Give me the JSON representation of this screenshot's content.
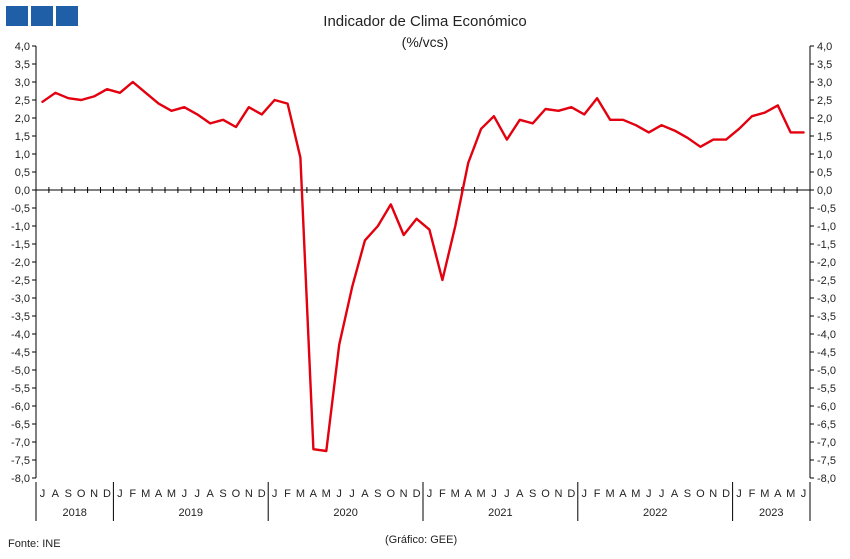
{
  "header": {
    "title": "Indicador de Clima Económico",
    "subtitle": "(%/vcs)"
  },
  "footer": {
    "source": "Fonte: INE",
    "credit": "(Gráfico: GEE)"
  },
  "colors": {
    "series": "#e3000f",
    "logo": "#1f5fa8",
    "axis": "#000000"
  },
  "chart_data": {
    "type": "line",
    "title": "Indicador de Clima Económico",
    "subtitle": "(%/vcs)",
    "ylim": [
      -8.0,
      4.0
    ],
    "ystep": 0.5,
    "y_ticks": [
      "4,0",
      "3,5",
      "3,0",
      "2,5",
      "2,0",
      "1,5",
      "1,0",
      "0,5",
      "0,0",
      "-0,5",
      "-1,0",
      "-1,5",
      "-2,0",
      "-2,5",
      "-3,0",
      "-3,5",
      "-4,0",
      "-4,5",
      "-5,0",
      "-5,5",
      "-6,0",
      "-6,5",
      "-7,0",
      "-7,5",
      "-8,0"
    ],
    "x_months": [
      "J",
      "A",
      "S",
      "O",
      "N",
      "D",
      "J",
      "F",
      "M",
      "A",
      "M",
      "J",
      "J",
      "A",
      "S",
      "O",
      "N",
      "D",
      "J",
      "F",
      "M",
      "A",
      "M",
      "J",
      "J",
      "A",
      "S",
      "O",
      "N",
      "D",
      "J",
      "F",
      "M",
      "A",
      "M",
      "J",
      "J",
      "A",
      "S",
      "O",
      "N",
      "D",
      "J",
      "F",
      "M",
      "A",
      "M",
      "J",
      "J",
      "A",
      "S",
      "O",
      "N",
      "D",
      "J",
      "F",
      "M",
      "A",
      "M",
      "J"
    ],
    "years": [
      {
        "label": "2018",
        "start": 0,
        "count": 6
      },
      {
        "label": "2019",
        "start": 6,
        "count": 12
      },
      {
        "label": "2020",
        "start": 18,
        "count": 12
      },
      {
        "label": "2021",
        "start": 30,
        "count": 12
      },
      {
        "label": "2022",
        "start": 42,
        "count": 12
      },
      {
        "label": "2023",
        "start": 54,
        "count": 6
      }
    ],
    "grid": false,
    "series": [
      {
        "values": [
          2.45,
          2.7,
          2.55,
          2.5,
          2.6,
          2.8,
          2.7,
          3.0,
          2.7,
          2.4,
          2.2,
          2.3,
          2.1,
          1.85,
          1.95,
          1.75,
          2.3,
          2.1,
          2.5,
          2.4,
          0.9,
          -7.2,
          -7.25,
          -4.3,
          -2.7,
          -1.4,
          -1.0,
          -0.4,
          -1.25,
          -0.8,
          -1.1,
          -2.5,
          -1.0,
          0.75,
          1.7,
          2.05,
          1.4,
          1.95,
          1.85,
          2.25,
          2.2,
          2.3,
          2.1,
          2.55,
          1.95,
          1.95,
          1.8,
          1.6,
          1.8,
          1.65,
          1.45,
          1.2,
          1.4,
          1.4,
          1.7,
          2.05,
          2.15,
          2.35,
          1.6,
          1.6
        ]
      }
    ]
  }
}
